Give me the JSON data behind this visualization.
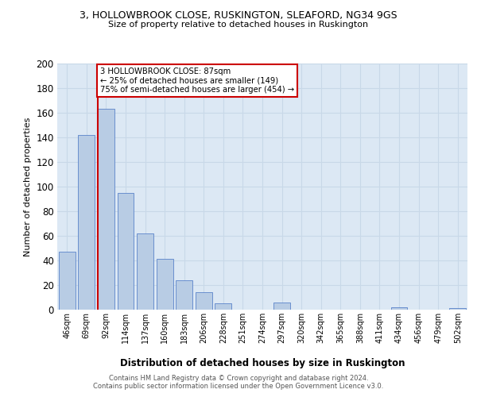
{
  "title1": "3, HOLLOWBROOK CLOSE, RUSKINGTON, SLEAFORD, NG34 9GS",
  "title2": "Size of property relative to detached houses in Ruskington",
  "xlabel": "Distribution of detached houses by size in Ruskington",
  "ylabel": "Number of detached properties",
  "categories": [
    "46sqm",
    "69sqm",
    "92sqm",
    "114sqm",
    "137sqm",
    "160sqm",
    "183sqm",
    "206sqm",
    "228sqm",
    "251sqm",
    "274sqm",
    "297sqm",
    "320sqm",
    "342sqm",
    "365sqm",
    "388sqm",
    "411sqm",
    "434sqm",
    "456sqm",
    "479sqm",
    "502sqm"
  ],
  "values": [
    47,
    142,
    163,
    95,
    62,
    41,
    24,
    14,
    5,
    0,
    0,
    6,
    0,
    0,
    0,
    0,
    0,
    2,
    0,
    0,
    1
  ],
  "bar_color": "#b8cce4",
  "bar_edge_color": "#4472c4",
  "bar_edge_width": 0.5,
  "property_label": "3 HOLLOWBROOK CLOSE: 87sqm",
  "annotation_line1": "← 25% of detached houses are smaller (149)",
  "annotation_line2": "75% of semi-detached houses are larger (454) →",
  "annotation_box_color": "#ffffff",
  "annotation_box_edge": "#cc0000",
  "property_line_color": "#cc0000",
  "ylim": [
    0,
    200
  ],
  "yticks": [
    0,
    20,
    40,
    60,
    80,
    100,
    120,
    140,
    160,
    180,
    200
  ],
  "grid_color": "#c8d8e8",
  "background_color": "#dce8f4",
  "footer1": "Contains HM Land Registry data © Crown copyright and database right 2024.",
  "footer2": "Contains public sector information licensed under the Open Government Licence v3.0."
}
